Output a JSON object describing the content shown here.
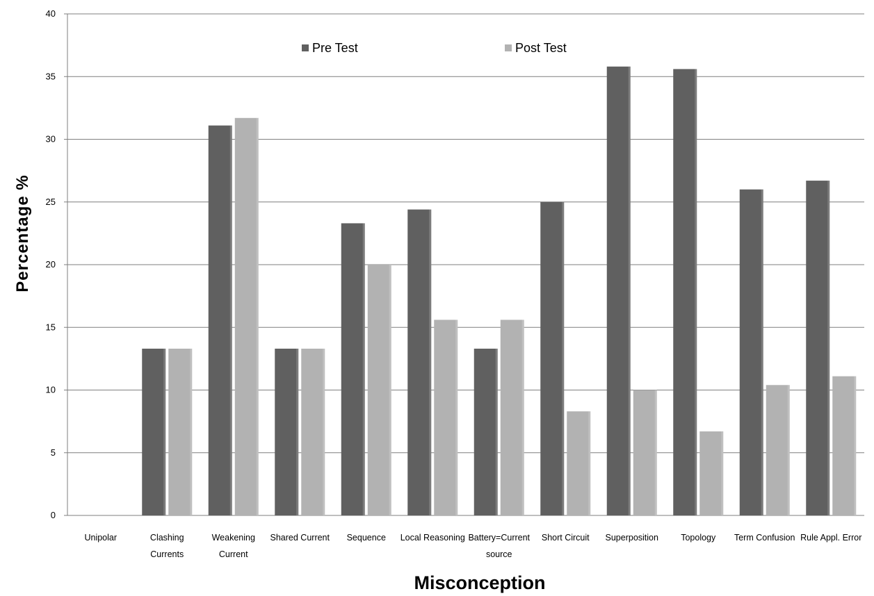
{
  "chart_data": {
    "type": "bar",
    "title": "",
    "xlabel": "Misconception",
    "ylabel": "Percentage  %",
    "ylim": [
      0,
      40
    ],
    "yticks": [
      0,
      5,
      10,
      15,
      20,
      25,
      30,
      35,
      40
    ],
    "grid": true,
    "legend_position": "top",
    "categories": [
      [
        "Unipolar"
      ],
      [
        "Clashing",
        "Currents"
      ],
      [
        "Weakening",
        "Current"
      ],
      [
        "Shared Current"
      ],
      [
        "Sequence"
      ],
      [
        "Local Reasoning"
      ],
      [
        "Battery=Current",
        "source"
      ],
      [
        "Short Circuit"
      ],
      [
        "Superposition"
      ],
      [
        "Topology"
      ],
      [
        "Term Confusion"
      ],
      [
        "Rule Appl. Error"
      ]
    ],
    "series": [
      {
        "name": "Pre Test",
        "color": "#606060",
        "values": [
          0,
          13.3,
          31.1,
          13.3,
          23.3,
          24.4,
          13.3,
          25.0,
          35.8,
          35.6,
          26.0,
          26.7
        ]
      },
      {
        "name": "Post Test",
        "color": "#b2b2b2",
        "values": [
          0,
          13.3,
          31.7,
          13.3,
          20.0,
          15.6,
          15.6,
          8.3,
          10.0,
          6.7,
          10.4,
          11.1
        ]
      }
    ]
  }
}
